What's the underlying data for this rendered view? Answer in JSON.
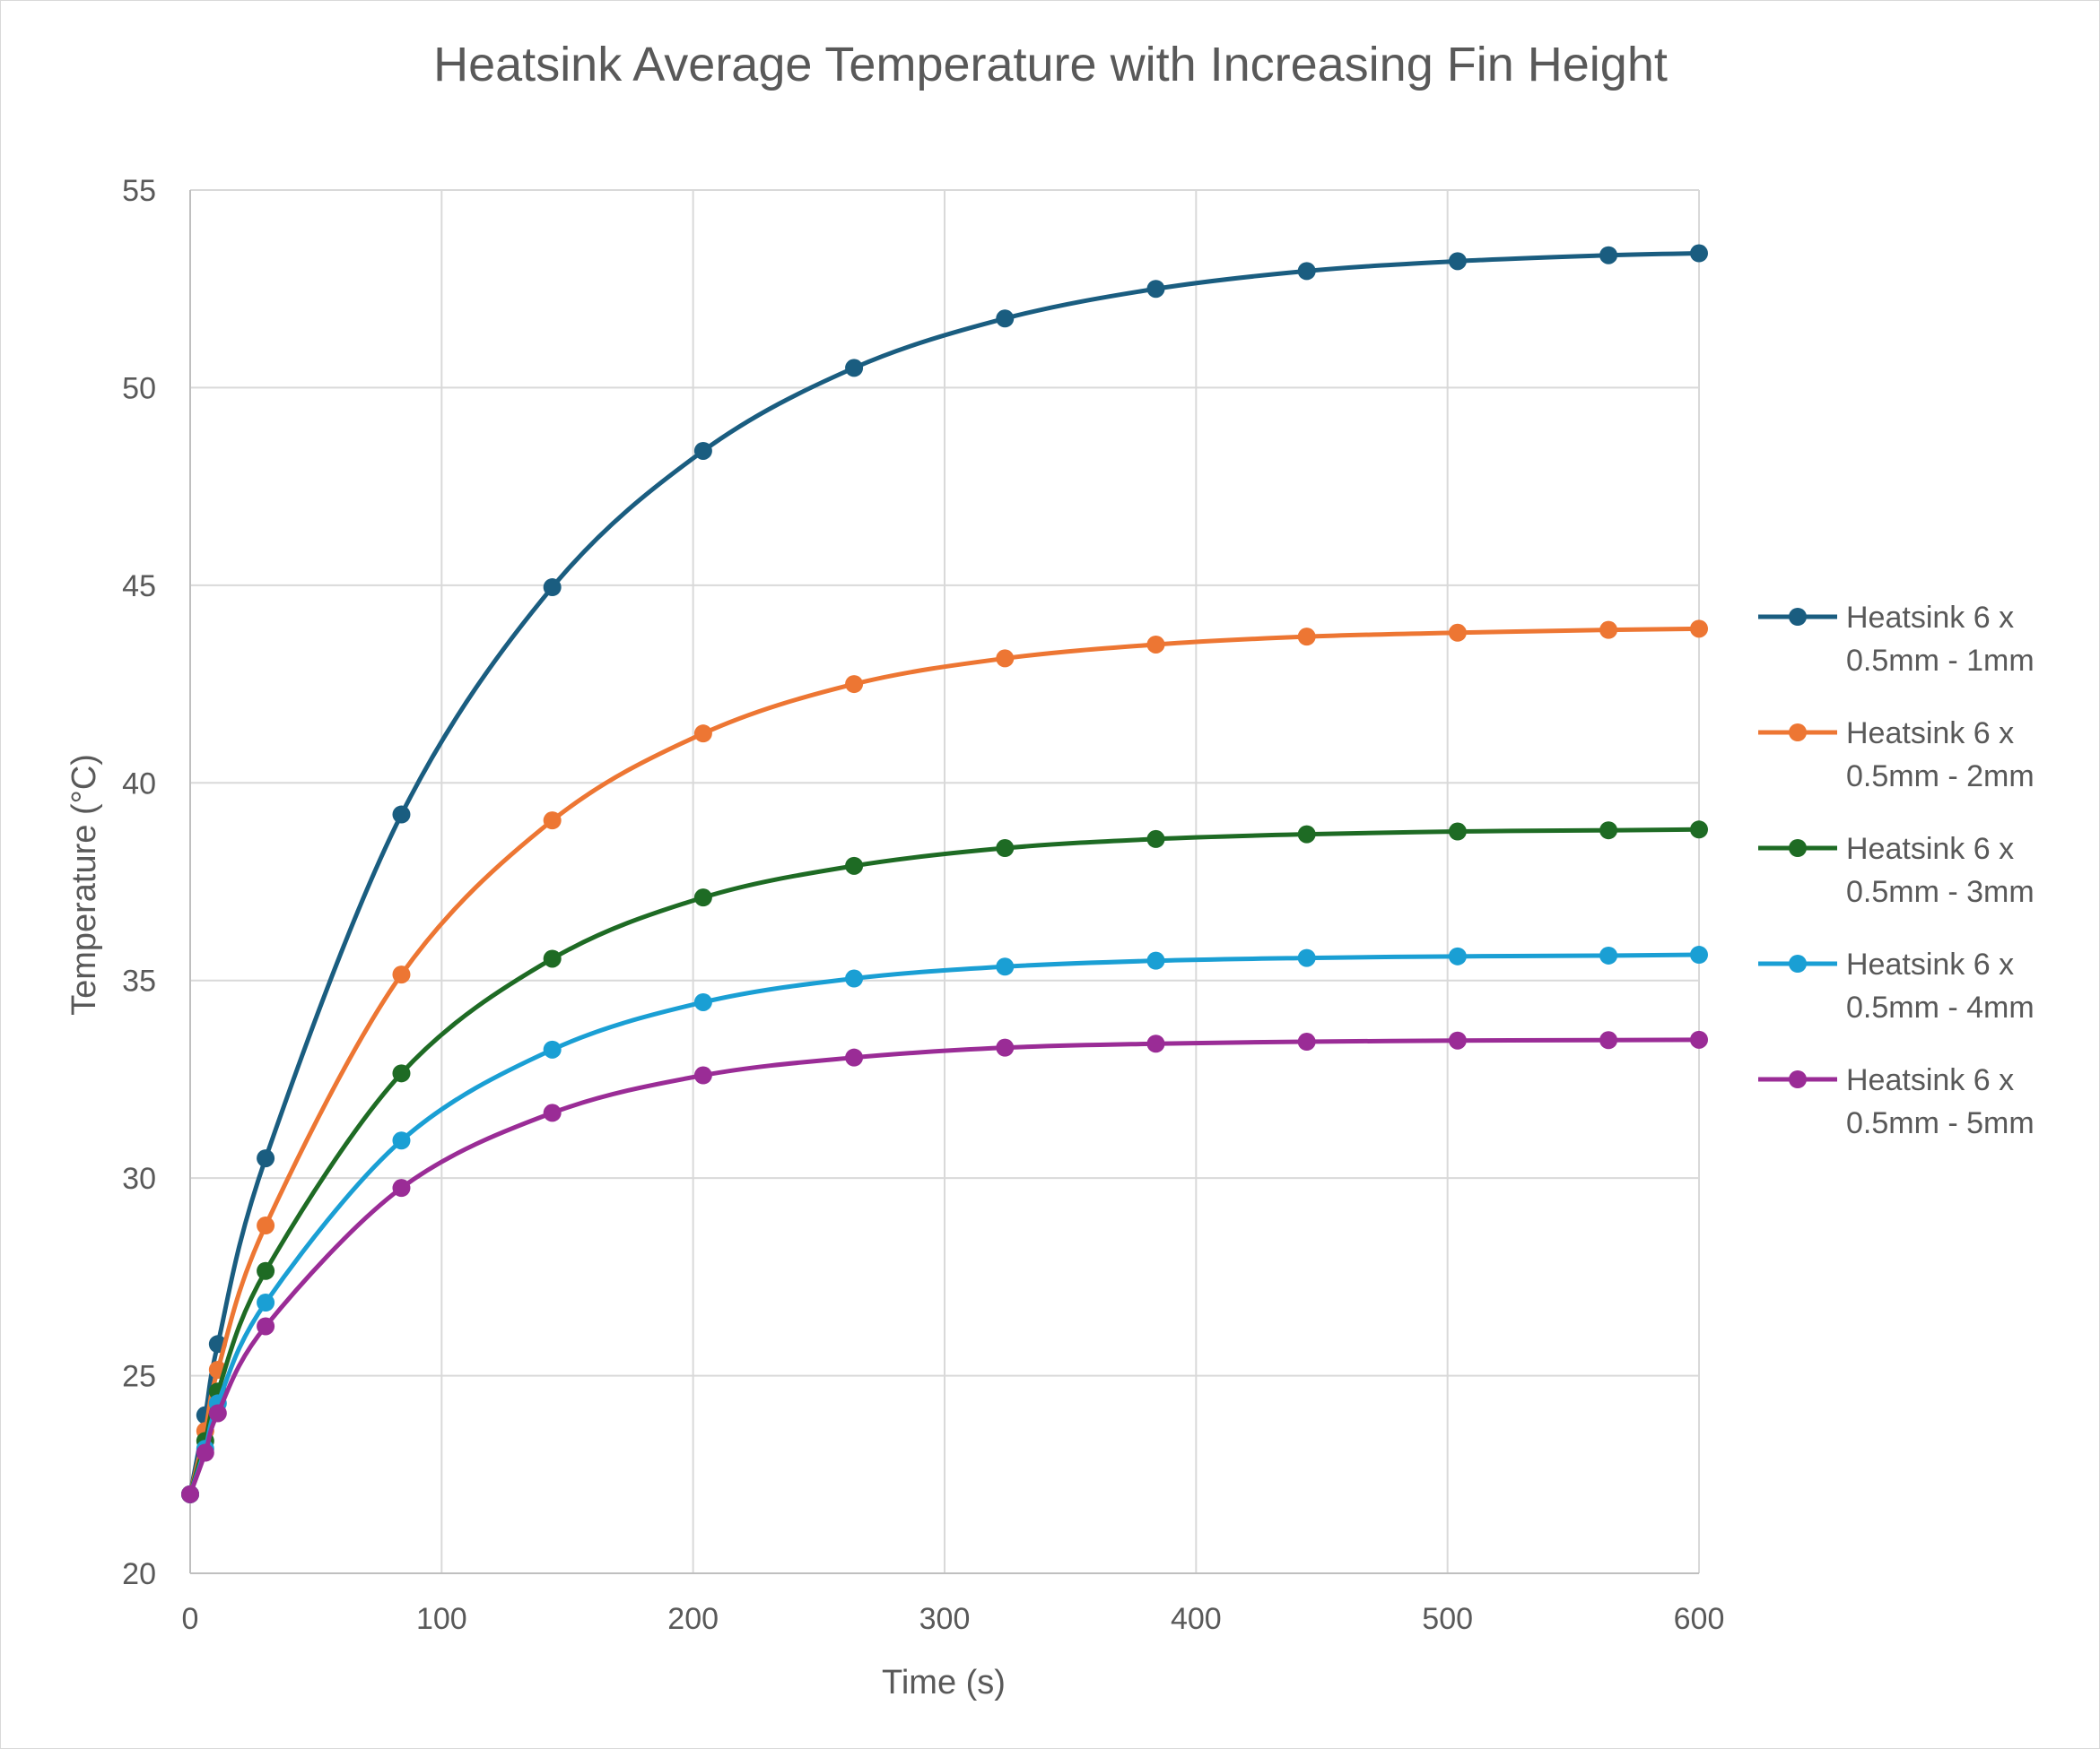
{
  "chart_data": {
    "type": "line",
    "title": "Heatsink Average Temperature with Increasing Fin Height",
    "xlabel": "Time (s)",
    "ylabel": "Temperature (°C)",
    "xlim": [
      0,
      600
    ],
    "ylim": [
      20,
      55
    ],
    "x_ticks": [
      "0",
      "100",
      "200",
      "300",
      "400",
      "500",
      "600"
    ],
    "y_ticks": [
      "20",
      "25",
      "30",
      "35",
      "40",
      "45",
      "50",
      "55"
    ],
    "grid": true,
    "legend_position": "right",
    "smooth": true,
    "markers": true,
    "x": [
      0,
      6,
      11,
      30,
      84,
      144,
      204,
      264,
      324,
      384,
      444,
      504,
      564,
      600
    ],
    "series": [
      {
        "name": "Heatsink 6 x 0.5mm - 1mm",
        "name_lines": [
          "Heatsink 6 x",
          "0.5mm - 1mm"
        ],
        "color": "#1a5d80",
        "values": [
          22.0,
          24.0,
          25.8,
          30.5,
          39.2,
          44.95,
          48.4,
          50.5,
          51.75,
          52.5,
          52.95,
          53.2,
          53.35,
          53.4
        ]
      },
      {
        "name": "Heatsink 6 x 0.5mm - 2mm",
        "name_lines": [
          "Heatsink 6 x",
          "0.5mm - 2mm"
        ],
        "color": "#ed7633",
        "values": [
          22.0,
          23.6,
          25.15,
          28.8,
          35.15,
          39.05,
          41.25,
          42.5,
          43.15,
          43.5,
          43.7,
          43.8,
          43.87,
          43.9
        ]
      },
      {
        "name": "Heatsink 6 x 0.5mm - 3mm",
        "name_lines": [
          "Heatsink 6 x",
          "0.5mm - 3mm"
        ],
        "color": "#1e6b24",
        "values": [
          22.0,
          23.35,
          24.6,
          27.65,
          32.65,
          35.55,
          37.1,
          37.9,
          38.35,
          38.58,
          38.7,
          38.77,
          38.8,
          38.82
        ]
      },
      {
        "name": "Heatsink 6 x 0.5mm - 4mm",
        "name_lines": [
          "Heatsink 6 x",
          "0.5mm - 4mm"
        ],
        "color": "#1a9fd4",
        "values": [
          22.0,
          23.15,
          24.3,
          26.85,
          30.95,
          33.25,
          34.45,
          35.05,
          35.35,
          35.5,
          35.57,
          35.61,
          35.63,
          35.65
        ]
      },
      {
        "name": "Heatsink 6 x 0.5mm - 5mm",
        "name_lines": [
          "Heatsink 6 x",
          "0.5mm - 5mm"
        ],
        "color": "#9a2c96",
        "values": [
          22.0,
          23.05,
          24.05,
          26.25,
          29.75,
          31.65,
          32.6,
          33.05,
          33.3,
          33.4,
          33.45,
          33.48,
          33.49,
          33.5
        ]
      }
    ]
  }
}
